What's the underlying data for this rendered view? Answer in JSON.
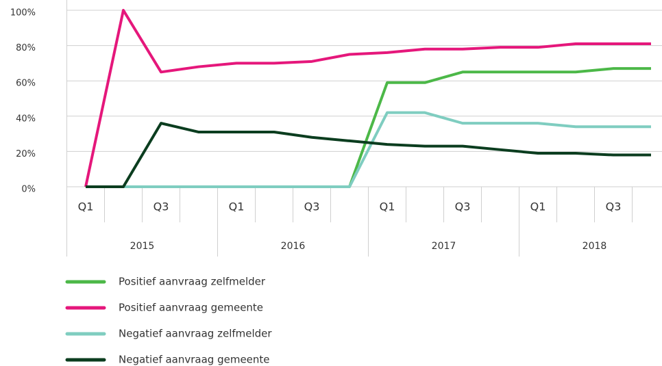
{
  "chart_data": {
    "type": "line",
    "categories": [
      "Q1",
      null,
      "Q3",
      null,
      "Q1",
      null,
      "Q3",
      null,
      "Q1",
      null,
      "Q3",
      null,
      "Q1",
      null,
      "Q3",
      null
    ],
    "groups": [
      "2015",
      "2016",
      "2017",
      "2018"
    ],
    "series": [
      {
        "name": "Positief aanvraag zelfmelder",
        "color": "#4cb848",
        "values": [
          0,
          0,
          0,
          0,
          0,
          0,
          0,
          0,
          59,
          59,
          65,
          65,
          65,
          65,
          67,
          67
        ]
      },
      {
        "name": "Positief aanvraag gemeente",
        "color": "#e5177b",
        "values": [
          0,
          100,
          65,
          68,
          70,
          70,
          71,
          75,
          76,
          78,
          78,
          79,
          79,
          81,
          81,
          81
        ]
      },
      {
        "name": "Negatief aanvraag zelfmelder",
        "color": "#7fcdc0",
        "values": [
          0,
          0,
          0,
          0,
          0,
          0,
          0,
          0,
          42,
          42,
          36,
          36,
          36,
          34,
          34,
          34
        ]
      },
      {
        "name": "Negatief aanvraag gemeente",
        "color": "#0b3d1f",
        "values": [
          0,
          0,
          36,
          31,
          31,
          31,
          28,
          26,
          24,
          23,
          23,
          21,
          19,
          19,
          18,
          18
        ]
      }
    ],
    "ylim": [
      0,
      100
    ],
    "yticks": [
      {
        "value": 0,
        "label": "0%"
      },
      {
        "value": 20,
        "label": "20%"
      },
      {
        "value": 40,
        "label": "40%"
      },
      {
        "value": 60,
        "label": "60%"
      },
      {
        "value": 80,
        "label": "80%"
      },
      {
        "value": 100,
        "label": "100%"
      }
    ],
    "grid": true
  }
}
